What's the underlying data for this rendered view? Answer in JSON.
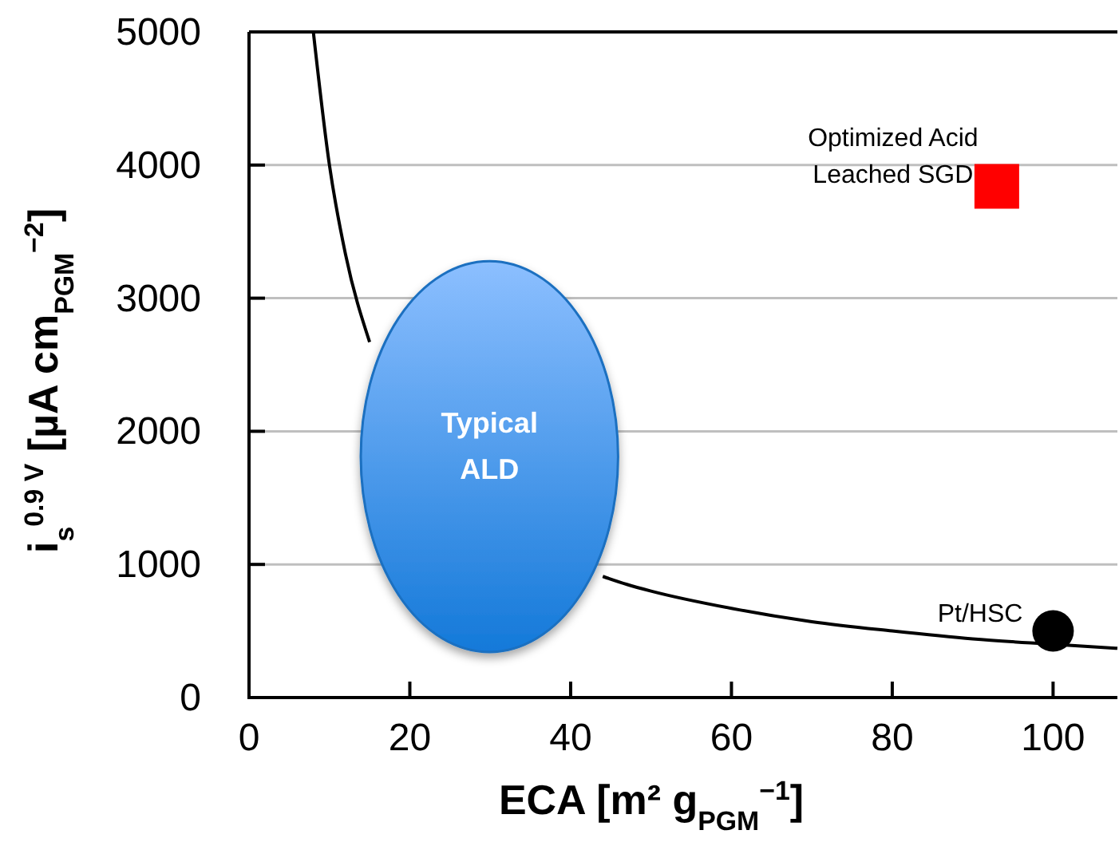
{
  "chart_data": {
    "type": "line",
    "xlabel": "ECA [m² g$_{PGM}$$^{−1}$]",
    "ylabel": "i$_{s}$$^{0.9 V}$ [µA cm$_{PGM}$$^{−2}$]",
    "xlim": [
      0,
      108
    ],
    "ylim": [
      0,
      5000
    ],
    "xticks": [
      0,
      20,
      40,
      60,
      80,
      100
    ],
    "yticks": [
      0,
      1000,
      2000,
      3000,
      4000,
      5000
    ],
    "grid": "y",
    "series": [
      {
        "color": "#000000",
        "marker": "none",
        "x": [
          8,
          10,
          12,
          15,
          20,
          25,
          30,
          40,
          44,
          47,
          50,
          60,
          70,
          80,
          90,
          100,
          108
        ],
        "values": [
          5000,
          4000,
          3330,
          2670,
          null,
          null,
          null,
          null,
          910,
          850,
          800,
          670,
          570,
          500,
          440,
          400,
          370
        ]
      },
      {
        "type": "scatter",
        "color": "#ff0000",
        "marker": "square",
        "x": [
          93
        ],
        "values": [
          3840
        ]
      },
      {
        "type": "scatter",
        "color": "#000000",
        "marker": "circle",
        "x": [
          100
        ],
        "values": [
          500
        ]
      }
    ],
    "annotations": [
      {
        "text": "Optimized Acid\nLeached SGD",
        "x": 93,
        "y": 3840
      },
      {
        "text": "Pt/HSC",
        "x": 100,
        "y": 500
      },
      "Typical\nALD"
    ]
  }
}
